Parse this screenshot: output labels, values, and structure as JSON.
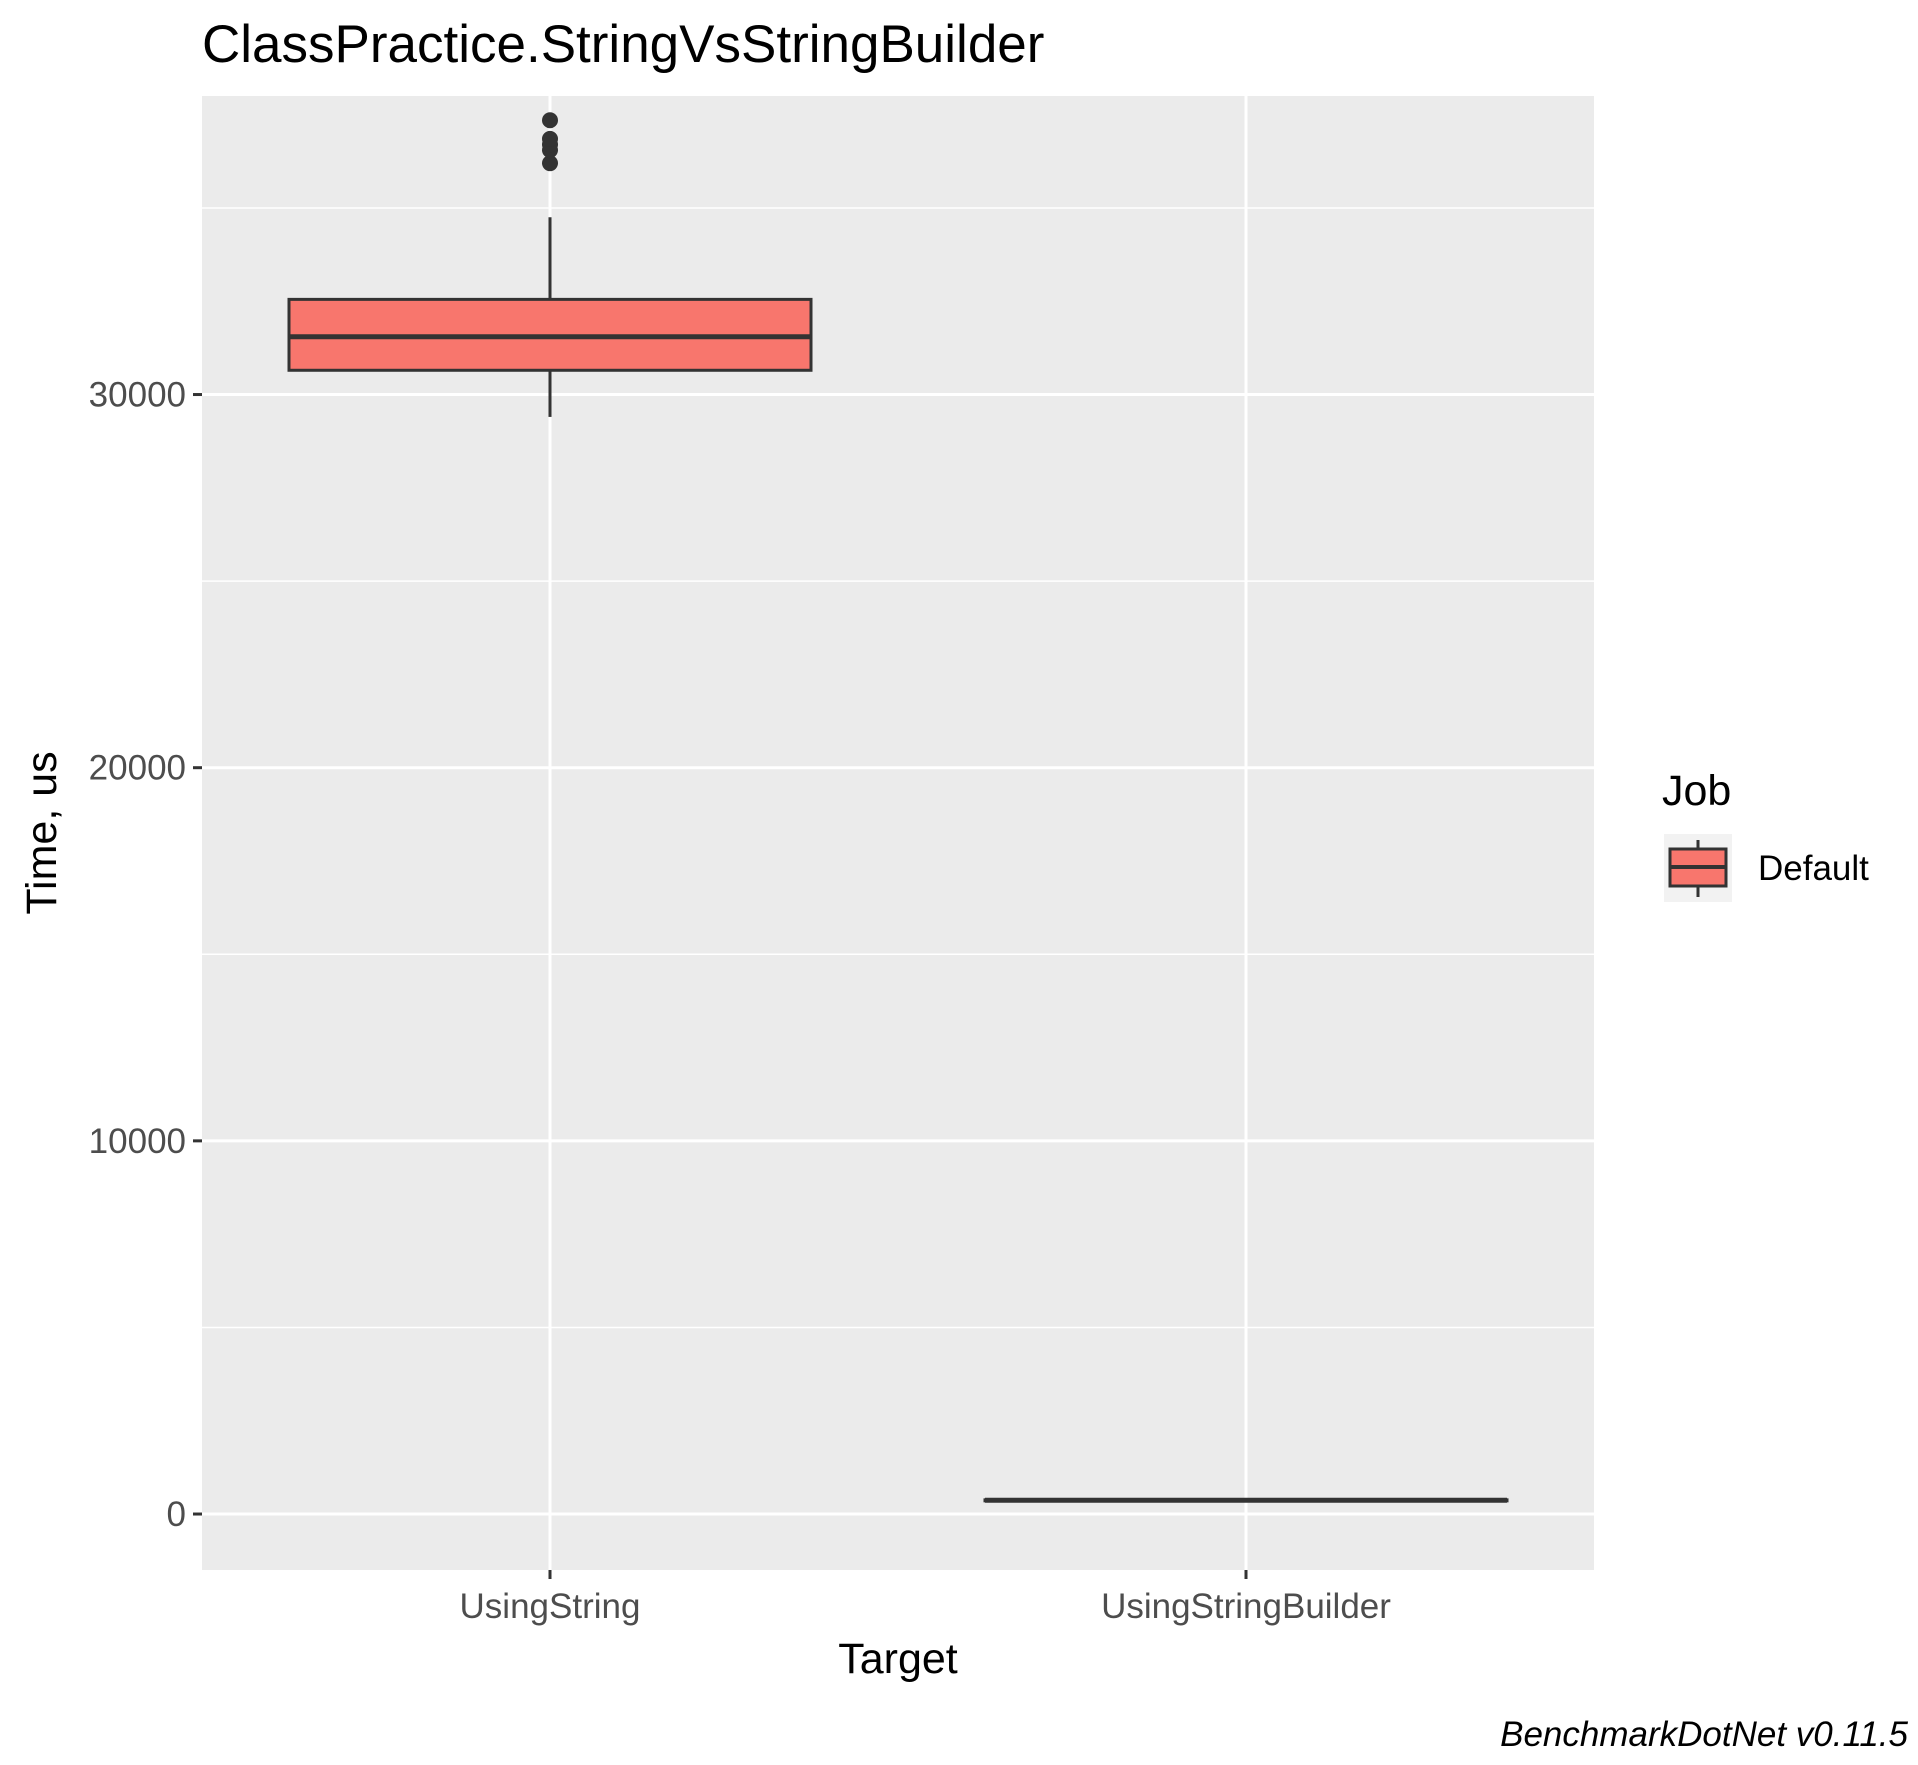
{
  "chart_data": {
    "type": "box",
    "title": "ClassPractice.StringVsStringBuilder",
    "xlabel": "Target",
    "ylabel": "Time, us",
    "categories": [
      "UsingString",
      "UsingStringBuilder"
    ],
    "ylim": [
      -1500,
      38000
    ],
    "yticks": [
      0,
      10000,
      20000,
      30000
    ],
    "ytick_labels": [
      "0",
      "10000",
      "20000",
      "30000"
    ],
    "grid": true,
    "series": [
      {
        "name": "Default",
        "boxes": [
          {
            "category": "UsingString",
            "lower_whisker": 29400,
            "q1": 30650,
            "median": 31550,
            "q3": 32550,
            "upper_whisker": 34750,
            "outliers": [
              36200,
              36550,
              36700,
              36850,
              37350
            ]
          },
          {
            "category": "UsingStringBuilder",
            "lower_whisker": 350,
            "q1": 360,
            "median": 370,
            "q3": 380,
            "upper_whisker": 390,
            "outliers": []
          }
        ]
      }
    ],
    "legend": {
      "title": "Job",
      "position": "right",
      "entries": [
        "Default"
      ]
    },
    "caption": "BenchmarkDotNet v0.11.5",
    "colors": {
      "box_fill": "#F8766D",
      "box_line": "#333333",
      "panel": "#EBEBEB",
      "grid": "#FFFFFF"
    }
  }
}
